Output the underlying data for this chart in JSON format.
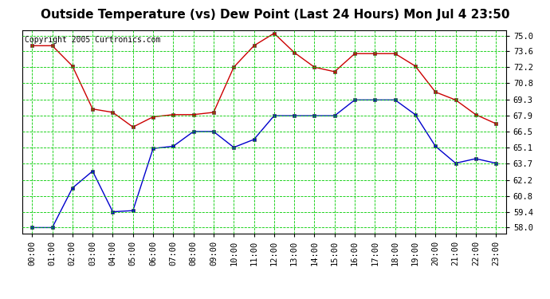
{
  "title": "Outside Temperature (vs) Dew Point (Last 24 Hours) Mon Jul 4 23:50",
  "copyright": "Copyright 2005 Curtronics.com",
  "x_labels": [
    "00:00",
    "01:00",
    "02:00",
    "03:00",
    "04:00",
    "05:00",
    "06:00",
    "07:00",
    "08:00",
    "09:00",
    "10:00",
    "11:00",
    "12:00",
    "13:00",
    "14:00",
    "15:00",
    "16:00",
    "17:00",
    "18:00",
    "19:00",
    "20:00",
    "21:00",
    "22:00",
    "23:00"
  ],
  "yticks": [
    58.0,
    59.4,
    60.8,
    62.2,
    63.7,
    65.1,
    66.5,
    67.9,
    69.3,
    70.8,
    72.2,
    73.6,
    75.0
  ],
  "ylim": [
    57.5,
    75.5
  ],
  "temp_color": "#cc0000",
  "dew_color": "#0000cc",
  "grid_color": "#00cc00",
  "background_color": "#ffffff",
  "temp_data": [
    74.1,
    74.1,
    72.3,
    68.5,
    68.2,
    66.9,
    67.8,
    68.0,
    68.0,
    68.2,
    72.2,
    74.1,
    75.2,
    73.5,
    72.2,
    71.8,
    73.4,
    73.4,
    73.4,
    72.3,
    70.0,
    69.3,
    68.0,
    67.2
  ],
  "dew_data": [
    58.0,
    58.0,
    61.5,
    63.0,
    59.4,
    59.5,
    65.0,
    65.2,
    66.5,
    66.5,
    65.1,
    65.8,
    67.9,
    67.9,
    67.9,
    67.9,
    69.3,
    69.3,
    69.3,
    68.0,
    65.2,
    63.7,
    64.1,
    63.7
  ],
  "title_fontsize": 11,
  "tick_fontsize": 7.5,
  "copyright_fontsize": 7
}
